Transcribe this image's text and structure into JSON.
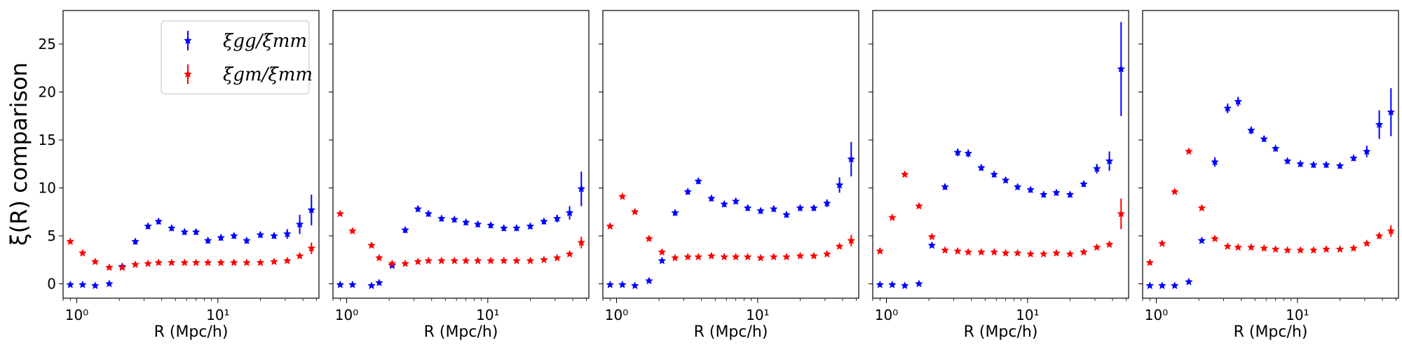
{
  "figure": {
    "ylabel": "ξ(R) comparison",
    "legend": {
      "placement": "top-right",
      "entries": [
        {
          "label": "ξgg/ξmm",
          "color": "#0000ff"
        },
        {
          "label": "ξgm/ξmm",
          "color": "#ff0000"
        }
      ]
    },
    "y_ticks": [
      "0",
      "5",
      "10",
      "15",
      "20",
      "25"
    ]
  },
  "chart_data": [
    {
      "type": "scatter",
      "x_scale": "log",
      "xlabel": "R  (Mpc/h)",
      "ylim": [
        -1.5,
        28.5
      ],
      "xlim": [
        0.8,
        52
      ],
      "x_ticks": [
        "10⁰",
        "10¹"
      ],
      "series": [
        {
          "name": "ξgg/ξmm",
          "color": "#0000ff",
          "x": [
            0.9,
            1.1,
            1.35,
            1.7,
            2.1,
            2.6,
            3.2,
            3.8,
            4.7,
            5.8,
            7.0,
            8.5,
            10.5,
            13,
            16,
            20,
            25,
            31,
            38,
            46
          ],
          "y": [
            -0.1,
            -0.1,
            -0.2,
            0.0,
            1.8,
            4.4,
            6.0,
            6.5,
            5.8,
            5.4,
            5.4,
            4.5,
            4.8,
            5.0,
            4.5,
            5.1,
            5.0,
            5.2,
            6.2,
            7.7
          ],
          "err": [
            0.1,
            0.1,
            0.1,
            0.1,
            0.2,
            0.3,
            0.3,
            0.3,
            0.3,
            0.3,
            0.3,
            0.3,
            0.3,
            0.3,
            0.3,
            0.3,
            0.3,
            0.5,
            1.0,
            1.6
          ]
        },
        {
          "name": "ξgm/ξmm",
          "color": "#ff0000",
          "x": [
            0.9,
            1.1,
            1.35,
            1.7,
            2.1,
            2.6,
            3.2,
            3.8,
            4.7,
            5.8,
            7.0,
            8.5,
            10.5,
            13,
            16,
            20,
            25,
            31,
            38,
            46
          ],
          "y": [
            4.4,
            3.2,
            2.3,
            1.7,
            1.7,
            2.0,
            2.1,
            2.2,
            2.2,
            2.2,
            2.2,
            2.2,
            2.2,
            2.2,
            2.2,
            2.2,
            2.3,
            2.4,
            2.9,
            3.7
          ],
          "err": [
            0.1,
            0.1,
            0.1,
            0.1,
            0.1,
            0.1,
            0.1,
            0.1,
            0.1,
            0.1,
            0.1,
            0.1,
            0.1,
            0.1,
            0.1,
            0.1,
            0.1,
            0.1,
            0.2,
            0.6
          ]
        }
      ]
    },
    {
      "type": "scatter",
      "x_scale": "log",
      "xlabel": "R  (Mpc/h)",
      "ylim": [
        -1.5,
        28.5
      ],
      "xlim": [
        0.8,
        52
      ],
      "x_ticks": [
        "10⁰",
        "10¹"
      ],
      "series": [
        {
          "name": "ξgg/ξmm",
          "color": "#0000ff",
          "x": [
            0.9,
            1.1,
            1.5,
            1.7,
            2.1,
            2.6,
            3.2,
            3.8,
            4.7,
            5.8,
            7.0,
            8.5,
            10.5,
            13,
            16,
            20,
            25,
            31,
            38,
            46
          ],
          "y": [
            -0.1,
            -0.1,
            -0.2,
            0.1,
            1.9,
            5.6,
            7.8,
            7.3,
            6.8,
            6.7,
            6.4,
            6.2,
            6.1,
            5.8,
            5.8,
            6.0,
            6.5,
            6.8,
            7.4,
            9.9
          ],
          "err": [
            0.1,
            0.1,
            0.1,
            0.1,
            0.2,
            0.3,
            0.3,
            0.3,
            0.3,
            0.3,
            0.3,
            0.3,
            0.3,
            0.3,
            0.3,
            0.3,
            0.3,
            0.4,
            0.7,
            1.8
          ]
        },
        {
          "name": "ξgm/ξmm",
          "color": "#ff0000",
          "x": [
            0.9,
            1.1,
            1.5,
            1.7,
            2.1,
            2.6,
            3.2,
            3.8,
            4.7,
            5.8,
            7.0,
            8.5,
            10.5,
            13,
            16,
            20,
            25,
            31,
            38,
            46
          ],
          "y": [
            7.3,
            5.5,
            4.0,
            2.7,
            2.1,
            2.1,
            2.3,
            2.4,
            2.4,
            2.4,
            2.4,
            2.4,
            2.4,
            2.4,
            2.4,
            2.4,
            2.5,
            2.7,
            3.1,
            4.3
          ],
          "err": [
            0.1,
            0.1,
            0.1,
            0.1,
            0.1,
            0.1,
            0.1,
            0.1,
            0.1,
            0.1,
            0.1,
            0.1,
            0.1,
            0.1,
            0.1,
            0.1,
            0.1,
            0.1,
            0.2,
            0.6
          ]
        }
      ]
    },
    {
      "type": "scatter",
      "x_scale": "log",
      "xlabel": "R  (Mpc/h)",
      "ylim": [
        -1.5,
        28.5
      ],
      "xlim": [
        0.8,
        52
      ],
      "x_ticks": [
        "10⁰",
        "10¹"
      ],
      "series": [
        {
          "name": "ξgg/ξmm",
          "color": "#0000ff",
          "x": [
            0.9,
            1.1,
            1.35,
            1.7,
            2.1,
            2.6,
            3.2,
            3.8,
            4.7,
            5.8,
            7.0,
            8.5,
            10.5,
            13,
            16,
            20,
            25,
            31,
            38,
            46
          ],
          "y": [
            -0.1,
            -0.1,
            -0.2,
            0.3,
            2.4,
            7.4,
            9.6,
            10.7,
            8.9,
            8.3,
            8.6,
            7.9,
            7.6,
            7.8,
            7.2,
            7.9,
            7.9,
            8.4,
            10.3,
            13.0
          ],
          "err": [
            0.1,
            0.1,
            0.1,
            0.1,
            0.2,
            0.3,
            0.3,
            0.3,
            0.3,
            0.3,
            0.3,
            0.3,
            0.3,
            0.3,
            0.3,
            0.3,
            0.3,
            0.4,
            0.8,
            1.8
          ]
        },
        {
          "name": "ξgm/ξmm",
          "color": "#ff0000",
          "x": [
            0.9,
            1.1,
            1.35,
            1.7,
            2.1,
            2.6,
            3.2,
            3.8,
            4.7,
            5.8,
            7.0,
            8.5,
            10.5,
            13,
            16,
            20,
            25,
            31,
            38,
            46
          ],
          "y": [
            6.0,
            9.1,
            7.5,
            4.7,
            3.3,
            2.7,
            2.8,
            2.8,
            2.9,
            2.8,
            2.8,
            2.8,
            2.7,
            2.8,
            2.8,
            2.9,
            2.9,
            3.1,
            3.9,
            4.5
          ],
          "err": [
            0.1,
            0.1,
            0.1,
            0.1,
            0.1,
            0.1,
            0.1,
            0.1,
            0.1,
            0.1,
            0.1,
            0.1,
            0.1,
            0.1,
            0.1,
            0.1,
            0.1,
            0.1,
            0.2,
            0.6
          ]
        }
      ]
    },
    {
      "type": "scatter",
      "x_scale": "log",
      "xlabel": "R  (Mpc/h)",
      "ylim": [
        -1.5,
        28.5
      ],
      "xlim": [
        0.8,
        52
      ],
      "x_ticks": [
        "10⁰",
        "10¹"
      ],
      "series": [
        {
          "name": "ξgg/ξmm",
          "color": "#0000ff",
          "x": [
            0.9,
            1.1,
            1.35,
            1.7,
            2.1,
            2.6,
            3.2,
            3.8,
            4.7,
            5.8,
            7.0,
            8.5,
            10.5,
            13,
            16,
            20,
            25,
            31,
            38,
            46
          ],
          "y": [
            -0.1,
            -0.1,
            -0.2,
            0.0,
            4.0,
            10.1,
            13.7,
            13.6,
            12.1,
            11.4,
            10.8,
            10.1,
            9.8,
            9.3,
            9.5,
            9.3,
            10.4,
            12.0,
            12.8,
            22.4
          ],
          "err": [
            0.1,
            0.1,
            0.1,
            0.1,
            0.2,
            0.3,
            0.4,
            0.4,
            0.3,
            0.3,
            0.3,
            0.3,
            0.3,
            0.3,
            0.3,
            0.3,
            0.3,
            0.5,
            1.0,
            4.9
          ]
        },
        {
          "name": "ξgm/ξmm",
          "color": "#ff0000",
          "x": [
            0.9,
            1.1,
            1.35,
            1.7,
            2.1,
            2.6,
            3.2,
            3.8,
            4.7,
            5.8,
            7.0,
            8.5,
            10.5,
            13,
            16,
            20,
            25,
            31,
            38,
            46
          ],
          "y": [
            3.4,
            6.9,
            11.4,
            8.1,
            4.9,
            3.5,
            3.4,
            3.3,
            3.3,
            3.3,
            3.2,
            3.2,
            3.1,
            3.1,
            3.2,
            3.1,
            3.3,
            3.8,
            4.1,
            7.3
          ],
          "err": [
            0.1,
            0.1,
            0.1,
            0.1,
            0.1,
            0.1,
            0.1,
            0.1,
            0.1,
            0.1,
            0.1,
            0.1,
            0.1,
            0.1,
            0.1,
            0.1,
            0.1,
            0.1,
            0.2,
            1.6
          ]
        }
      ]
    },
    {
      "type": "scatter",
      "x_scale": "log",
      "xlabel": "R  (Mpc/h)",
      "ylim": [
        -1.5,
        28.5
      ],
      "xlim": [
        0.8,
        52
      ],
      "x_ticks": [
        "10⁰",
        "10¹"
      ],
      "series": [
        {
          "name": "ξgg/ξmm",
          "color": "#0000ff",
          "x": [
            0.9,
            1.1,
            1.35,
            1.7,
            2.1,
            2.6,
            3.2,
            3.8,
            4.7,
            5.8,
            7.0,
            8.5,
            10.5,
            13,
            16,
            20,
            25,
            31,
            38,
            46
          ],
          "y": [
            -0.2,
            -0.2,
            -0.2,
            0.2,
            4.5,
            12.7,
            18.3,
            19.0,
            16.0,
            15.1,
            14.1,
            12.8,
            12.5,
            12.4,
            12.4,
            12.3,
            13.1,
            13.8,
            16.6,
            17.9
          ],
          "err": [
            0.1,
            0.1,
            0.1,
            0.1,
            0.2,
            0.5,
            0.5,
            0.5,
            0.4,
            0.3,
            0.3,
            0.3,
            0.3,
            0.3,
            0.3,
            0.3,
            0.3,
            0.6,
            1.5,
            2.5
          ]
        },
        {
          "name": "ξgm/ξmm",
          "color": "#ff0000",
          "x": [
            0.9,
            1.1,
            1.35,
            1.7,
            2.1,
            2.6,
            3.2,
            3.8,
            4.7,
            5.8,
            7.0,
            8.5,
            10.5,
            13,
            16,
            20,
            25,
            31,
            38,
            46
          ],
          "y": [
            2.2,
            4.2,
            9.6,
            13.8,
            7.9,
            4.7,
            3.9,
            3.8,
            3.8,
            3.7,
            3.6,
            3.5,
            3.5,
            3.5,
            3.6,
            3.6,
            3.7,
            4.2,
            5.0,
            5.5
          ],
          "err": [
            0.1,
            0.1,
            0.1,
            0.1,
            0.1,
            0.1,
            0.1,
            0.1,
            0.1,
            0.1,
            0.1,
            0.1,
            0.1,
            0.1,
            0.1,
            0.1,
            0.1,
            0.2,
            0.3,
            0.6
          ]
        }
      ]
    }
  ]
}
